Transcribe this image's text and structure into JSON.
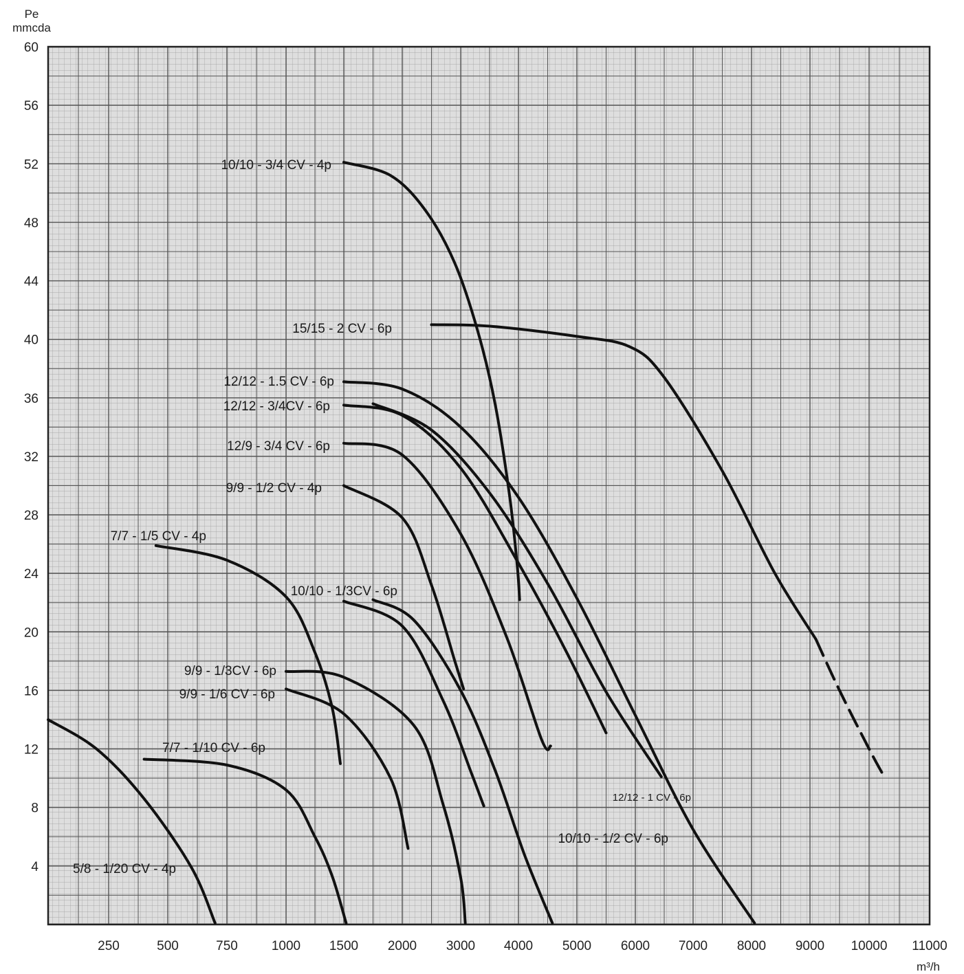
{
  "chart_data": {
    "type": "line",
    "ylabel": "Pe\nmmcda",
    "xlabel": "m³/h",
    "y_ticks": [
      "60",
      "56",
      "52",
      "48",
      "44",
      "40",
      "36",
      "32",
      "28",
      "24",
      "20",
      "16",
      "12",
      "8",
      "4"
    ],
    "x_ticks": [
      "250",
      "500",
      "750",
      "1000",
      "1500",
      "2000",
      "3000",
      "4000",
      "5000",
      "6000",
      "7000",
      "8000",
      "9000",
      "10000",
      "11000"
    ],
    "ylim": [
      0,
      60
    ],
    "x_scale": "piecewise: 250 steps up to 1000, 500 steps to 2000, 1000 steps to 11000",
    "grid": true,
    "series": [
      {
        "name": "10/10 - 3/4 CV - 4p",
        "points": [
          [
            1500,
            52.1
          ],
          [
            1900,
            51.2
          ],
          [
            2400,
            48.8
          ],
          [
            2900,
            45.2
          ],
          [
            3300,
            40.5
          ],
          [
            3600,
            35.5
          ],
          [
            3850,
            29.2
          ],
          [
            3980,
            24.5
          ],
          [
            4020,
            22.2
          ]
        ]
      },
      {
        "name": "15/15 - 2 CV - 6p",
        "points": [
          [
            2500,
            41.0
          ],
          [
            3500,
            40.9
          ],
          [
            5000,
            40.2
          ],
          [
            5900,
            39.5
          ],
          [
            6500,
            37.4
          ],
          [
            7500,
            31.0
          ],
          [
            8400,
            24.0
          ],
          [
            9100,
            19.5
          ]
        ],
        "dashed_tail": [
          [
            9100,
            19.5
          ],
          [
            9500,
            16.0
          ],
          [
            10000,
            12.0
          ],
          [
            10250,
            10.1
          ]
        ]
      },
      {
        "name": "12/12 - 1.5 CV - 6p",
        "points": [
          [
            1500,
            37.1
          ],
          [
            2000,
            36.6
          ],
          [
            3000,
            34.0
          ],
          [
            4000,
            29.2
          ],
          [
            5000,
            22.3
          ],
          [
            6000,
            14.3
          ],
          [
            7000,
            6.5
          ],
          [
            8050,
            0.1
          ]
        ]
      },
      {
        "name": "12/12 - 3/4CV - 6p",
        "points": [
          [
            1500,
            35.5
          ],
          [
            2000,
            34.8
          ],
          [
            3000,
            31.2
          ],
          [
            4000,
            24.7
          ],
          [
            4800,
            18.8
          ],
          [
            5500,
            13.1
          ]
        ]
      },
      {
        "name": "12/9 - 3/4 CV - 6p",
        "points": [
          [
            1500,
            32.9
          ],
          [
            2000,
            32.1
          ],
          [
            3000,
            26.7
          ],
          [
            3800,
            19.6
          ],
          [
            4400,
            12.6
          ],
          [
            4550,
            12.2
          ]
        ]
      },
      {
        "name": "9/9 - 1/2 CV - 4p",
        "points": [
          [
            1500,
            30.0
          ],
          [
            2000,
            27.8
          ],
          [
            2500,
            23.2
          ],
          [
            2900,
            18.0
          ],
          [
            3050,
            16.1
          ]
        ]
      },
      {
        "name": "7/7 - 1/5 CV - 4p",
        "points": [
          [
            450,
            25.9
          ],
          [
            750,
            24.9
          ],
          [
            1000,
            22.4
          ],
          [
            1250,
            18.6
          ],
          [
            1400,
            14.8
          ],
          [
            1470,
            11.0
          ]
        ]
      },
      {
        "name": "10/10 - 1/3CV - 6p",
        "points": [
          [
            1500,
            22.1
          ],
          [
            2000,
            20.4
          ],
          [
            2700,
            15.3
          ],
          [
            3200,
            10.2
          ],
          [
            3400,
            8.1
          ]
        ]
      },
      {
        "name": "10/10 - 1/2 CV - 6p",
        "points": [
          [
            1750,
            22.2
          ],
          [
            2200,
            20.8
          ],
          [
            3000,
            16.0
          ],
          [
            3600,
            10.5
          ],
          [
            4100,
            4.8
          ],
          [
            4580,
            0.1
          ]
        ]
      },
      {
        "name": "9/9 - 1/3CV - 6p",
        "points": [
          [
            1000,
            17.3
          ],
          [
            1500,
            16.9
          ],
          [
            2200,
            13.6
          ],
          [
            2700,
            8.2
          ],
          [
            3000,
            3.2
          ],
          [
            3080,
            0.1
          ]
        ]
      },
      {
        "name": "9/9 - 1/6 CV - 6p",
        "points": [
          [
            1000,
            16.1
          ],
          [
            1500,
            14.4
          ],
          [
            1900,
            10.0
          ],
          [
            2100,
            5.2
          ]
        ]
      },
      {
        "name": "12/12 - 1 CV - 6p",
        "points": [
          [
            1750,
            35.6
          ],
          [
            2500,
            33.8
          ],
          [
            3500,
            29.5
          ],
          [
            4500,
            23.3
          ],
          [
            5500,
            15.9
          ],
          [
            6450,
            10.1
          ]
        ]
      },
      {
        "name": "7/7 - 1/10 CV - 6p",
        "points": [
          [
            400,
            11.3
          ],
          [
            750,
            10.9
          ],
          [
            1000,
            9.2
          ],
          [
            1250,
            6.0
          ],
          [
            1400,
            3.3
          ],
          [
            1520,
            0.1
          ]
        ]
      },
      {
        "name": "5/8 - 1/20 CV - 4p",
        "points": [
          [
            0,
            14.0
          ],
          [
            200,
            12.0
          ],
          [
            400,
            8.6
          ],
          [
            600,
            3.9
          ],
          [
            700,
            0.1
          ]
        ]
      }
    ],
    "annotations": [
      {
        "text": "10/10 - 3/4 CV - 4p",
        "series": "10/10 - 3/4 CV - 4p"
      },
      {
        "text": "15/15 - 2 CV - 6p",
        "series": "15/15 - 2 CV - 6p"
      },
      {
        "text": "12/12 - 1.5 CV - 6p",
        "series": "12/12 - 1.5 CV - 6p"
      },
      {
        "text": "12/12 - 3/4CV - 6p",
        "series": "12/12 - 3/4CV - 6p"
      },
      {
        "text": "12/9 - 3/4 CV - 6p",
        "series": "12/9 - 3/4 CV - 6p"
      },
      {
        "text": "9/9 - 1/2 CV - 4p",
        "series": "9/9 - 1/2 CV - 4p"
      },
      {
        "text": "7/7 - 1/5 CV - 4p",
        "series": "7/7 - 1/5 CV - 4p"
      },
      {
        "text": "10/10 - 1/3CV - 6p",
        "series": "10/10 - 1/3CV - 6p"
      },
      {
        "text": "9/9 - 1/3CV - 6p",
        "series": "9/9 - 1/3CV - 6p"
      },
      {
        "text": "9/9 - 1/6 CV - 6p",
        "series": "9/9 - 1/6 CV - 6p"
      },
      {
        "text": "7/7 - 1/10 CV - 6p",
        "series": "7/7 - 1/10 CV - 6p"
      },
      {
        "text": "12/12 - 1 CV - 6p",
        "series": "12/12 - 1 CV - 6p"
      },
      {
        "text": "10/10 - 1/2 CV - 6p",
        "series": "10/10 - 1/2 CV - 6p"
      },
      {
        "text": "5/8 - 1/20 CV - 4p",
        "series": "5/8 - 1/20 CV - 4p"
      }
    ]
  }
}
